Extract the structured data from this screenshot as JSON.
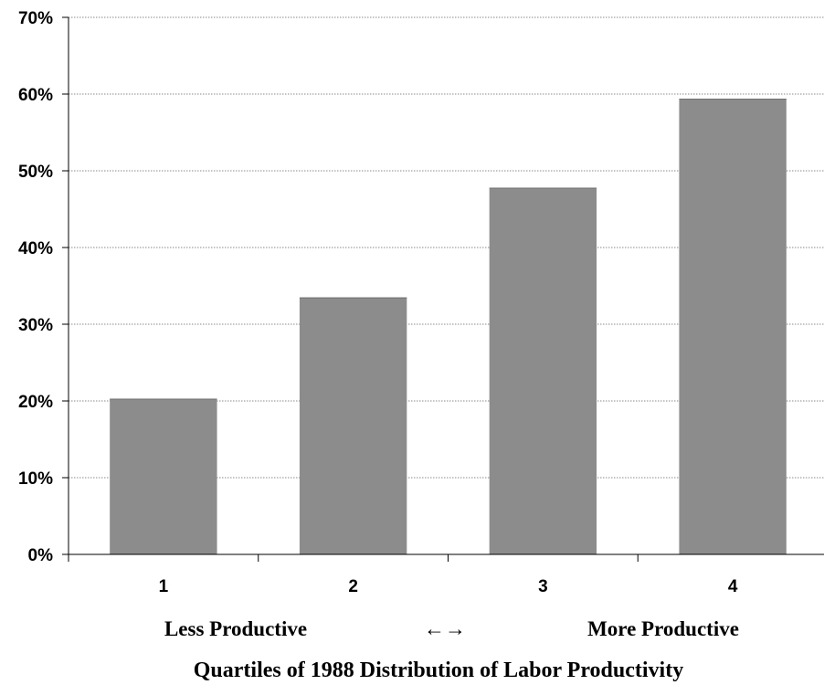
{
  "chart_data": {
    "type": "bar",
    "categories": [
      "1",
      "2",
      "3",
      "4"
    ],
    "values": [
      20.3,
      33.5,
      47.8,
      59.4
    ],
    "ylim": [
      0,
      70
    ],
    "yticks": [
      0,
      10,
      20,
      30,
      40,
      50,
      60,
      70
    ],
    "ytick_labels": [
      "0%",
      "10%",
      "20%",
      "30%",
      "40%",
      "50%",
      "60%",
      "70%"
    ],
    "xlabel": "Quartiles of 1988 Distribution of Labor Productivity",
    "x_annotations": {
      "left": "Less Productive",
      "middle": "←→",
      "right": "More Productive"
    },
    "grid": true,
    "bar_color": "#8c8c8c",
    "grid_color": "#8a8a8a"
  }
}
